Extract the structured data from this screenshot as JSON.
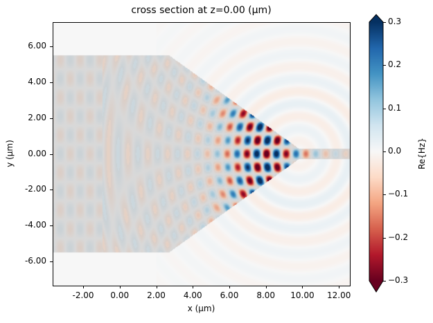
{
  "chart_data": {
    "type": "heatmap",
    "title": "cross section at z=0.00 (µm)",
    "xlabel": "x (µm)",
    "ylabel": "y (µm)",
    "xlim": [
      -3.67,
      12.6
    ],
    "ylim": [
      -7.35,
      7.35
    ],
    "xticks": [
      "-2.00",
      "0.00",
      "2.00",
      "4.00",
      "6.00",
      "8.00",
      "10.00",
      "12.00"
    ],
    "xtick_values": [
      -2,
      0,
      2,
      4,
      6,
      8,
      10,
      12
    ],
    "yticks": [
      "6.00",
      "4.00",
      "2.00",
      "0.00",
      "-2.00",
      "-4.00",
      "-6.00"
    ],
    "ytick_values": [
      6,
      4,
      2,
      0,
      -2,
      -4,
      -6
    ],
    "colorbar": {
      "label": "Re{Hz}",
      "colormap": "RdBu",
      "range": [
        -0.3,
        0.3
      ],
      "extend": "both",
      "ticks": [
        "0.3",
        "0.2",
        "0.1",
        "0.0",
        "−0.1",
        "−0.2",
        "−0.3"
      ],
      "tick_values": [
        0.3,
        0.2,
        0.1,
        0.0,
        -0.1,
        -0.2,
        -0.3
      ]
    },
    "structure": {
      "color": "#c0c0c0",
      "polygon": [
        [
          -3.67,
          5.5
        ],
        [
          2.7,
          5.5
        ],
        [
          9.8,
          0.3
        ],
        [
          12.6,
          0.3
        ],
        [
          12.6,
          -0.3
        ],
        [
          9.8,
          -0.3
        ],
        [
          2.7,
          -5.5
        ],
        [
          -3.67,
          -5.5
        ]
      ],
      "source_x": -0.95
    },
    "grid": false
  }
}
